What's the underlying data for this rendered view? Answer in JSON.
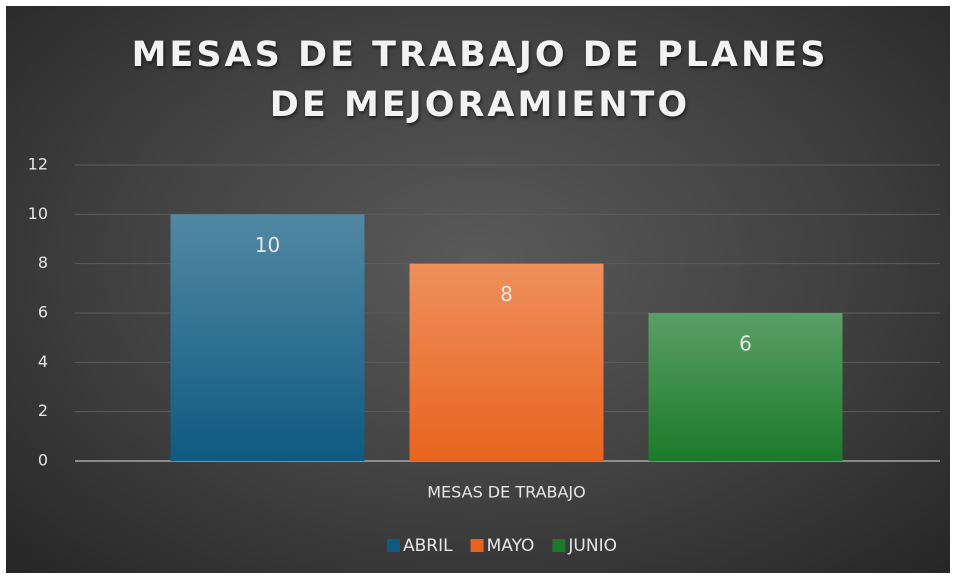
{
  "chart_data": {
    "type": "bar",
    "title": "MESAS DE TRABAJO DE PLANES DE MEJORAMIENTO",
    "categories": [
      "MESAS DE TRABAJO"
    ],
    "series": [
      {
        "name": "ABRIL",
        "color": "#0e5a80",
        "values": [
          10
        ]
      },
      {
        "name": "MAYO",
        "color": "#e8641e",
        "values": [
          8
        ]
      },
      {
        "name": "JUNIO",
        "color": "#1b7a2a",
        "values": [
          6
        ]
      }
    ],
    "ylim": [
      0,
      12
    ],
    "yticks": [
      0,
      2,
      4,
      6,
      8,
      10,
      12
    ],
    "grid": true,
    "legend": "bottom"
  }
}
